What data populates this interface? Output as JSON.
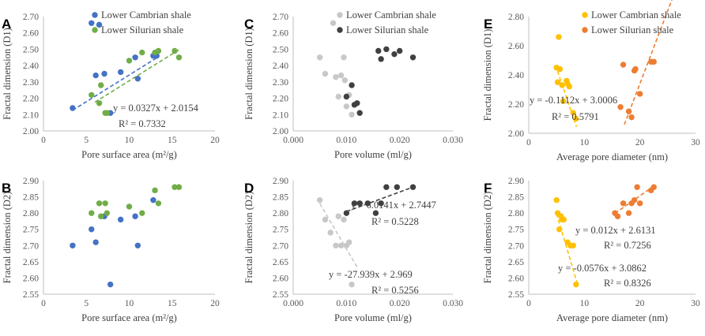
{
  "colors": {
    "cambrian_A": "#4472C4",
    "silurian_A": "#70AD47",
    "cambrian_C": "#C8C8C8",
    "silurian_C": "#404040",
    "cambrian_E": "#FFC000",
    "silurian_E": "#ED7D31"
  },
  "chart_data": [
    {
      "letter": "A",
      "type": "scatter",
      "xlabel": "Pore surface area (m²/g)",
      "ylabel": "Fractal dimension (D1)",
      "xlim": [
        0,
        20
      ],
      "xticks": [
        0,
        5,
        10,
        15,
        20
      ],
      "xtick_labels": [
        "0",
        "5",
        "10",
        "15",
        "20"
      ],
      "ylim": [
        2.0,
        2.7
      ],
      "yticks": [
        2.0,
        2.1,
        2.2,
        2.3,
        2.4,
        2.5,
        2.6,
        2.7
      ],
      "ytick_labels": [
        "2.00",
        "2.10",
        "2.20",
        "2.30",
        "2.40",
        "2.50",
        "2.60",
        "2.70"
      ],
      "legend": [
        "Lower Cambrian shale",
        "Lower Silurian shale"
      ],
      "series": [
        {
          "name": "Lower Cambrian shale",
          "color": "#4472C4",
          "points": [
            [
              3.4,
              2.14
            ],
            [
              5.6,
              2.66
            ],
            [
              6.1,
              2.34
            ],
            [
              6.5,
              2.65
            ],
            [
              7.1,
              2.35
            ],
            [
              7.8,
              2.11
            ],
            [
              9.0,
              2.36
            ],
            [
              10.7,
              2.45
            ],
            [
              11.0,
              2.32
            ],
            [
              12.8,
              2.46
            ],
            [
              13.2,
              2.46
            ]
          ],
          "trend": {
            "slope": 0.0327,
            "intercept": 2.0154,
            "x_range": [
              3.4,
              13.5
            ]
          }
        },
        {
          "name": "Lower Silurian shale",
          "color": "#70AD47",
          "points": [
            [
              5.6,
              2.22
            ],
            [
              6.5,
              2.17
            ],
            [
              6.7,
              2.28
            ],
            [
              7.2,
              2.11
            ],
            [
              7.4,
              2.11
            ],
            [
              10.0,
              2.43
            ],
            [
              11.5,
              2.48
            ],
            [
              13.0,
              2.48
            ],
            [
              13.4,
              2.49
            ],
            [
              15.3,
              2.49
            ],
            [
              15.8,
              2.45
            ]
          ],
          "trend": {
            "slope": 0.0327,
            "intercept": 1.98,
            "x_range": [
              6.0,
              15.8
            ]
          }
        }
      ],
      "annotations": [
        "y = 0.0327x + 2.0154",
        "R² = 0.7332"
      ]
    },
    {
      "letter": "B",
      "type": "scatter",
      "xlabel": "Pore surface area (m²/g)",
      "ylabel": "Fractal dimension (D2)",
      "xlim": [
        0,
        20
      ],
      "xticks": [
        0,
        5,
        10,
        15,
        20
      ],
      "xtick_labels": [
        "0",
        "5",
        "10",
        "15",
        "20"
      ],
      "ylim": [
        2.55,
        2.9
      ],
      "yticks": [
        2.55,
        2.6,
        2.65,
        2.7,
        2.75,
        2.8,
        2.85,
        2.9
      ],
      "ytick_labels": [
        "2.55",
        "2.60",
        "2.65",
        "2.70",
        "2.75",
        "2.80",
        "2.85",
        "2.90"
      ],
      "legend": [],
      "series": [
        {
          "name": "Lower Cambrian shale",
          "color": "#4472C4",
          "points": [
            [
              3.4,
              2.7
            ],
            [
              5.6,
              2.75
            ],
            [
              6.1,
              2.71
            ],
            [
              7.1,
              2.79
            ],
            [
              7.8,
              2.58
            ],
            [
              9.0,
              2.78
            ],
            [
              10.7,
              2.79
            ],
            [
              11.0,
              2.7
            ],
            [
              12.8,
              2.84
            ]
          ]
        },
        {
          "name": "Lower Silurian shale",
          "color": "#70AD47",
          "points": [
            [
              5.6,
              2.8
            ],
            [
              6.5,
              2.83
            ],
            [
              6.7,
              2.79
            ],
            [
              7.2,
              2.83
            ],
            [
              7.4,
              2.8
            ],
            [
              10.0,
              2.82
            ],
            [
              11.5,
              2.8
            ],
            [
              13.0,
              2.87
            ],
            [
              13.4,
              2.83
            ],
            [
              15.3,
              2.88
            ],
            [
              15.8,
              2.88
            ]
          ]
        }
      ],
      "annotations": []
    },
    {
      "letter": "C",
      "type": "scatter",
      "xlabel": "Pore volume (ml/g)",
      "ylabel": "Fractal dimension (D1)",
      "xlim": [
        0,
        0.03
      ],
      "xticks": [
        0,
        0.01,
        0.02,
        0.03
      ],
      "xtick_labels": [
        "0.000",
        "0.010",
        "0.020",
        "0.030"
      ],
      "ylim": [
        2.0,
        2.7
      ],
      "yticks": [
        2.0,
        2.1,
        2.2,
        2.3,
        2.4,
        2.5,
        2.6,
        2.7
      ],
      "ytick_labels": [
        "2.00",
        "2.10",
        "2.20",
        "2.30",
        "2.40",
        "2.50",
        "2.60",
        "2.70"
      ],
      "legend": [
        "Lower Cambrian shale",
        "Lower Silurian shale"
      ],
      "series": [
        {
          "name": "Lower Cambrian shale",
          "color": "#C8C8C8",
          "points": [
            [
              0.005,
              2.45
            ],
            [
              0.006,
              2.35
            ],
            [
              0.0075,
              2.66
            ],
            [
              0.008,
              2.33
            ],
            [
              0.0085,
              2.21
            ],
            [
              0.009,
              2.34
            ],
            [
              0.0095,
              2.45
            ],
            [
              0.0097,
              2.31
            ],
            [
              0.01,
              2.15
            ],
            [
              0.0105,
              2.22
            ],
            [
              0.011,
              2.1
            ]
          ]
        },
        {
          "name": "Lower Silurian shale",
          "color": "#404040",
          "points": [
            [
              0.01,
              2.21
            ],
            [
              0.011,
              2.28
            ],
            [
              0.0115,
              2.16
            ],
            [
              0.012,
              2.17
            ],
            [
              0.0125,
              2.11
            ],
            [
              0.016,
              2.49
            ],
            [
              0.0165,
              2.44
            ],
            [
              0.0175,
              2.5
            ],
            [
              0.019,
              2.47
            ],
            [
              0.02,
              2.49
            ],
            [
              0.0225,
              2.45
            ]
          ]
        }
      ],
      "annotations": []
    },
    {
      "letter": "D",
      "type": "scatter",
      "xlabel": "Pore volume (ml/g)",
      "ylabel": "Fractal dimension (D2)",
      "xlim": [
        0,
        0.03
      ],
      "xticks": [
        0,
        0.01,
        0.02,
        0.03
      ],
      "xtick_labels": [
        "0.000",
        "0.010",
        "0.020",
        "0.030"
      ],
      "ylim": [
        2.55,
        2.9
      ],
      "yticks": [
        2.55,
        2.6,
        2.65,
        2.7,
        2.75,
        2.8,
        2.85,
        2.9
      ],
      "ytick_labels": [
        "2.55",
        "2.60",
        "2.65",
        "2.70",
        "2.75",
        "2.80",
        "2.85",
        "2.90"
      ],
      "legend": [],
      "series": [
        {
          "name": "Lower Cambrian shale",
          "color": "#C8C8C8",
          "points": [
            [
              0.005,
              2.84
            ],
            [
              0.006,
              2.78
            ],
            [
              0.007,
              2.74
            ],
            [
              0.008,
              2.7
            ],
            [
              0.0085,
              2.79
            ],
            [
              0.009,
              2.7
            ],
            [
              0.0095,
              2.78
            ],
            [
              0.01,
              2.7
            ],
            [
              0.0105,
              2.71
            ],
            [
              0.011,
              2.58
            ]
          ],
          "trend": {
            "slope": -27.939,
            "intercept": 2.969,
            "x_range": [
              0.005,
              0.012
            ]
          }
        },
        {
          "name": "Lower Silurian shale",
          "color": "#404040",
          "points": [
            [
              0.01,
              2.8
            ],
            [
              0.0115,
              2.83
            ],
            [
              0.0125,
              2.83
            ],
            [
              0.014,
              2.83
            ],
            [
              0.0155,
              2.8
            ],
            [
              0.0165,
              2.83
            ],
            [
              0.0175,
              2.88
            ],
            [
              0.0195,
              2.88
            ],
            [
              0.0225,
              2.88
            ]
          ],
          "trend": {
            "slope": 6.0141,
            "intercept": 2.7447,
            "x_range": [
              0.01,
              0.0225
            ]
          }
        }
      ],
      "annotations": [
        "y = 6.0141x + 2.7447",
        "R² = 0.5228",
        "y = -27.939x + 2.969",
        "R² = 0.5256"
      ]
    },
    {
      "letter": "E",
      "type": "scatter",
      "xlabel": "Average pore diameter (nm)",
      "ylabel": "Fractal dimension (D1)",
      "xlim": [
        0,
        30
      ],
      "xticks": [
        0,
        10,
        20,
        30
      ],
      "xtick_labels": [
        "0",
        "10",
        "20",
        "30"
      ],
      "ylim": [
        2.0,
        2.8
      ],
      "yticks": [
        2.0,
        2.2,
        2.4,
        2.6,
        2.8
      ],
      "ytick_labels": [
        "2.00",
        "2.20",
        "2.40",
        "2.60",
        "2.80"
      ],
      "legend": [
        "Lower Cambrian shale",
        "Lower Silurian shale"
      ],
      "series": [
        {
          "name": "Lower Cambrian shale",
          "color": "#FFC000",
          "points": [
            [
              5.0,
              2.45
            ],
            [
              5.2,
              2.35
            ],
            [
              5.4,
              2.66
            ],
            [
              5.6,
              2.44
            ],
            [
              6.0,
              2.33
            ],
            [
              6.2,
              2.22
            ],
            [
              6.8,
              2.36
            ],
            [
              7.0,
              2.34
            ],
            [
              7.3,
              2.32
            ],
            [
              8.0,
              2.14
            ],
            [
              8.5,
              2.1
            ]
          ],
          "trend": {
            "slope": -0.1112,
            "intercept": 3.0006,
            "x_range": [
              4.8,
              8.6
            ]
          }
        },
        {
          "name": "Lower Silurian shale",
          "color": "#ED7D31",
          "points": [
            [
              16.5,
              2.18
            ],
            [
              17.0,
              2.47
            ],
            [
              18.0,
              2.15
            ],
            [
              18.5,
              2.11
            ],
            [
              19.0,
              2.43
            ],
            [
              19.2,
              2.44
            ],
            [
              20.0,
              2.27
            ],
            [
              22.0,
              2.49
            ],
            [
              22.5,
              2.49
            ]
          ],
          "trend": {
            "slope": 0.1,
            "intercept": 0.34,
            "x_range": [
              17.2,
              26.5
            ]
          }
        }
      ],
      "annotations": [
        "y = -0.1112x + 3.0006",
        "R² = 0.5791"
      ]
    },
    {
      "letter": "F",
      "type": "scatter",
      "xlabel": "Average pore diameter (nm)",
      "ylabel": "Fractal dimension (D2)",
      "xlim": [
        0,
        30
      ],
      "xticks": [
        0,
        10,
        20,
        30
      ],
      "xtick_labels": [
        "0",
        "10",
        "20",
        "30"
      ],
      "ylim": [
        2.55,
        2.9
      ],
      "yticks": [
        2.55,
        2.6,
        2.65,
        2.7,
        2.75,
        2.8,
        2.85,
        2.9
      ],
      "ytick_labels": [
        "2.55",
        "2.60",
        "2.65",
        "2.70",
        "2.75",
        "2.80",
        "2.85",
        "2.90"
      ],
      "legend": [],
      "series": [
        {
          "name": "Lower Cambrian shale",
          "color": "#FFC000",
          "points": [
            [
              5.0,
              2.84
            ],
            [
              5.2,
              2.8
            ],
            [
              5.5,
              2.75
            ],
            [
              5.8,
              2.79
            ],
            [
              6.0,
              2.78
            ],
            [
              6.3,
              2.78
            ],
            [
              7.0,
              2.71
            ],
            [
              7.5,
              2.7
            ],
            [
              8.0,
              2.7
            ],
            [
              8.5,
              2.58
            ]
          ],
          "trend": {
            "slope": -0.0576,
            "intercept": 3.0862,
            "x_range": [
              5.0,
              8.7
            ]
          }
        },
        {
          "name": "Lower Silurian shale",
          "color": "#ED7D31",
          "points": [
            [
              15.5,
              2.8
            ],
            [
              16.0,
              2.79
            ],
            [
              17.0,
              2.83
            ],
            [
              18.0,
              2.8
            ],
            [
              18.5,
              2.83
            ],
            [
              19.0,
              2.84
            ],
            [
              19.5,
              2.88
            ],
            [
              20.0,
              2.83
            ],
            [
              22.0,
              2.87
            ],
            [
              22.5,
              2.88
            ]
          ],
          "trend": {
            "slope": 0.012,
            "intercept": 2.6131,
            "x_range": [
              15.5,
              22.8
            ]
          }
        }
      ],
      "annotations": [
        "y = 0.012x + 2.6131",
        "R² = 0.7256",
        "y = -0.0576x + 3.0862",
        "R² = 0.8326"
      ]
    }
  ]
}
